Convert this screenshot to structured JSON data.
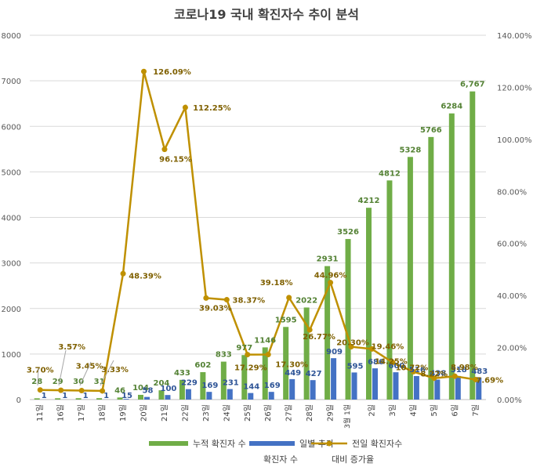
{
  "chart_data": {
    "type": "bar",
    "title": "코로나19 국내 확진자수 추이 분석",
    "categories": [
      "11일",
      "16일",
      "17일",
      "18일",
      "19일",
      "20일",
      "21일",
      "22일",
      "23일",
      "24일",
      "25일",
      "26일",
      "27일",
      "28일",
      "29일",
      "3월 1일",
      "2일",
      "3일",
      "4일",
      "5일",
      "6일",
      "7일"
    ],
    "series": [
      {
        "name": "누적 확진자 수",
        "type": "bar",
        "axis": "left",
        "color": "#70ad47",
        "values": [
          28,
          29,
          30,
          31,
          46,
          104,
          204,
          433,
          602,
          833,
          977,
          1146,
          1595,
          2022,
          2931,
          3526,
          4212,
          4812,
          5328,
          5766,
          6284,
          6767
        ],
        "labels": [
          "28",
          "29",
          "30",
          "31",
          "46",
          "104",
          "204",
          "433",
          "602",
          "833",
          "977",
          "1146",
          "1595",
          "2022",
          "2931",
          "3526",
          "4212",
          "4812",
          "5328",
          "5766",
          "6284",
          "6,767"
        ]
      },
      {
        "name": "일별 추가 확진자 수",
        "type": "bar",
        "axis": "left",
        "color": "#4472c4",
        "values": [
          1,
          1,
          1,
          1,
          15,
          58,
          100,
          229,
          169,
          231,
          144,
          169,
          449,
          427,
          909,
          595,
          686,
          600,
          516,
          438,
          518,
          483
        ],
        "labels": [
          "1",
          "1",
          "1",
          "1",
          "15",
          "58",
          "100",
          "229",
          "169",
          "231",
          "144",
          "169",
          "449",
          "427",
          "909",
          "595",
          "686",
          "600",
          "516",
          "438",
          "518",
          "483"
        ]
      },
      {
        "name": "전일 확진자수 대비 증가율",
        "type": "line",
        "axis": "right",
        "color": "#bf9000",
        "values": [
          3.7,
          3.57,
          3.45,
          3.33,
          48.39,
          126.09,
          96.15,
          112.25,
          39.03,
          38.37,
          17.29,
          17.3,
          39.18,
          26.77,
          44.96,
          20.3,
          19.46,
          14.25,
          10.72,
          8.22,
          8.98,
          7.69
        ],
        "labels": [
          "3.70%",
          "3.57%",
          "3.45%",
          "3.33%",
          "48.39%",
          "126.09%",
          "96.15%",
          "112.25%",
          "39.03%",
          "38.37%",
          "17.29%",
          "17.30%",
          "39.18%",
          "26.77%",
          "44.96%",
          "20.30%",
          "19.46%",
          "14.25%",
          "10.72%",
          "8.22%",
          "8.98%",
          "7.69%"
        ]
      }
    ],
    "left_axis": {
      "min": 0,
      "max": 8000,
      "ticks": [
        "0",
        "1000",
        "2000",
        "3000",
        "4000",
        "5000",
        "6000",
        "7000",
        "8000"
      ]
    },
    "right_axis": {
      "min": 0,
      "max": 140,
      "ticks": [
        "0.00%",
        "20.00%",
        "40.00%",
        "60.00%",
        "80.00%",
        "100.00%",
        "120.00%",
        "140.00%"
      ]
    },
    "legend": {
      "position": "bottom",
      "items": [
        {
          "line1": "누적 확진자 수",
          "line2": ""
        },
        {
          "line1": "일별 추가",
          "line2": "확진자 수"
        },
        {
          "line1": "전일 확진자수",
          "line2": "대비 증가율"
        }
      ]
    },
    "grid": true
  }
}
